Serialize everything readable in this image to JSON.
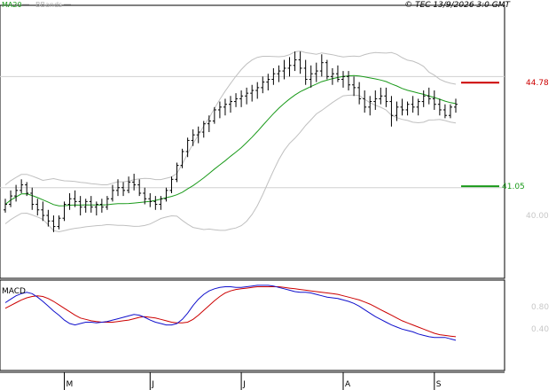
{
  "legend": {
    "ma_label": "MA20",
    "bb_label": "BBands",
    "ma_color": "#1a9a1a",
    "bb_color": "#c0c0c0"
  },
  "copyright": "© TEC 13/9/2026 3:0 GMT",
  "levels": {
    "resistance": {
      "value": 44.78,
      "label": "44.78",
      "color": "#cc0000"
    },
    "support": {
      "value": 41.05,
      "label": "41.05",
      "color": "#1a9a1a"
    },
    "axis_label": "40.00"
  },
  "macd_panel": {
    "title": "MACD",
    "tick_labels": [
      "0.80",
      "0.40"
    ],
    "macd_color": "#1010cc",
    "signal_color": "#cc0000"
  },
  "x_axis": {
    "months": [
      "M",
      "J",
      "J",
      "A",
      "S"
    ]
  },
  "chart_data": {
    "type": "line",
    "price": {
      "ylim": [
        37.8,
        47.5
      ],
      "gridlines": [
        45.0,
        41.0
      ],
      "sessions": 85,
      "series": [
        {
          "name": "Price",
          "ohlc": [
            [
              40.2,
              40.6,
              40.1,
              40.4
            ],
            [
              40.4,
              40.9,
              40.3,
              40.7
            ],
            [
              40.7,
              41.1,
              40.5,
              40.9
            ],
            [
              40.9,
              41.3,
              40.8,
              41.1
            ],
            [
              41.1,
              41.2,
              40.7,
              40.8
            ],
            [
              40.8,
              41.0,
              40.2,
              40.4
            ],
            [
              40.4,
              40.6,
              40.0,
              40.2
            ],
            [
              40.2,
              40.5,
              39.8,
              40.0
            ],
            [
              40.0,
              40.2,
              39.6,
              39.8
            ],
            [
              39.8,
              40.0,
              39.4,
              39.6
            ],
            [
              39.6,
              40.0,
              39.5,
              39.9
            ],
            [
              39.9,
              40.5,
              39.8,
              40.4
            ],
            [
              40.4,
              40.8,
              40.2,
              40.6
            ],
            [
              40.6,
              40.9,
              40.3,
              40.5
            ],
            [
              40.5,
              40.7,
              40.0,
              40.3
            ],
            [
              40.3,
              40.6,
              40.1,
              40.5
            ],
            [
              40.5,
              40.7,
              40.1,
              40.3
            ],
            [
              40.3,
              40.5,
              40.0,
              40.4
            ],
            [
              40.4,
              40.6,
              40.1,
              40.3
            ],
            [
              40.3,
              40.7,
              40.2,
              40.6
            ],
            [
              40.6,
              41.1,
              40.5,
              40.9
            ],
            [
              40.9,
              41.3,
              40.7,
              41.0
            ],
            [
              41.0,
              41.2,
              40.7,
              40.9
            ],
            [
              40.9,
              41.4,
              40.8,
              41.2
            ],
            [
              41.2,
              41.5,
              40.9,
              41.1
            ],
            [
              41.1,
              41.3,
              40.7,
              40.8
            ],
            [
              40.8,
              41.0,
              40.4,
              40.6
            ],
            [
              40.6,
              40.8,
              40.3,
              40.5
            ],
            [
              40.5,
              40.7,
              40.2,
              40.4
            ],
            [
              40.4,
              40.7,
              40.2,
              40.6
            ],
            [
              40.6,
              41.0,
              40.5,
              40.9
            ],
            [
              40.9,
              41.4,
              40.8,
              41.3
            ],
            [
              41.3,
              41.9,
              41.2,
              41.8
            ],
            [
              41.8,
              42.4,
              41.7,
              42.3
            ],
            [
              42.3,
              42.8,
              42.1,
              42.7
            ],
            [
              42.7,
              43.1,
              42.5,
              42.9
            ],
            [
              42.9,
              43.2,
              42.6,
              43.0
            ],
            [
              43.0,
              43.4,
              42.8,
              43.3
            ],
            [
              43.3,
              43.6,
              43.0,
              43.4
            ],
            [
              43.4,
              43.9,
              43.3,
              43.8
            ],
            [
              43.8,
              44.1,
              43.5,
              43.9
            ],
            [
              43.9,
              44.2,
              43.6,
              44.0
            ],
            [
              44.0,
              44.3,
              43.7,
              44.1
            ],
            [
              44.1,
              44.4,
              43.9,
              44.2
            ],
            [
              44.2,
              44.5,
              43.9,
              44.3
            ],
            [
              44.3,
              44.6,
              44.0,
              44.4
            ],
            [
              44.4,
              44.7,
              44.1,
              44.5
            ],
            [
              44.5,
              44.8,
              44.2,
              44.6
            ],
            [
              44.6,
              45.0,
              44.4,
              44.8
            ],
            [
              44.8,
              45.1,
              44.5,
              44.9
            ],
            [
              44.9,
              45.3,
              44.7,
              45.1
            ],
            [
              45.1,
              45.4,
              44.8,
              45.2
            ],
            [
              45.2,
              45.6,
              44.9,
              45.3
            ],
            [
              45.3,
              45.7,
              45.0,
              45.4
            ],
            [
              45.4,
              45.9,
              45.2,
              45.6
            ],
            [
              45.6,
              45.9,
              45.1,
              45.3
            ],
            [
              45.3,
              45.6,
              44.7,
              44.9
            ],
            [
              44.9,
              45.4,
              44.6,
              45.1
            ],
            [
              45.1,
              45.5,
              44.8,
              45.2
            ],
            [
              45.2,
              45.8,
              45.0,
              45.5
            ],
            [
              45.5,
              45.6,
              44.9,
              45.0
            ],
            [
              45.0,
              45.3,
              44.7,
              45.1
            ],
            [
              45.1,
              45.4,
              44.8,
              44.9
            ],
            [
              44.9,
              45.2,
              44.6,
              45.0
            ],
            [
              45.0,
              45.2,
              44.5,
              44.7
            ],
            [
              44.7,
              45.0,
              44.3,
              44.6
            ],
            [
              44.6,
              44.8,
              44.0,
              44.2
            ],
            [
              44.2,
              44.5,
              43.7,
              43.9
            ],
            [
              43.9,
              44.3,
              43.6,
              44.1
            ],
            [
              44.1,
              44.5,
              43.8,
              44.2
            ],
            [
              44.2,
              44.6,
              44.0,
              44.3
            ],
            [
              44.3,
              44.6,
              43.9,
              44.1
            ],
            [
              44.1,
              44.3,
              43.2,
              43.6
            ],
            [
              43.6,
              44.1,
              43.4,
              43.9
            ],
            [
              43.9,
              44.2,
              43.6,
              43.8
            ],
            [
              43.8,
              44.1,
              43.6,
              44.0
            ],
            [
              44.0,
              44.3,
              43.7,
              43.9
            ],
            [
              43.9,
              44.2,
              43.6,
              44.1
            ],
            [
              44.1,
              44.5,
              43.9,
              44.3
            ],
            [
              44.3,
              44.6,
              44.0,
              44.2
            ],
            [
              44.2,
              44.5,
              43.8,
              44.0
            ],
            [
              44.0,
              44.2,
              43.6,
              43.8
            ],
            [
              43.8,
              44.0,
              43.5,
              43.6
            ],
            [
              43.6,
              44.0,
              43.5,
              43.9
            ],
            [
              43.9,
              44.2,
              43.7,
              44.0
            ]
          ]
        }
      ]
    },
    "macd": {
      "ylim": [
        -0.05,
        1.2
      ],
      "series": [
        {
          "name": "MACD",
          "values": [
            0.9,
            0.95,
            1.0,
            1.03,
            1.05,
            1.03,
            0.98,
            0.92,
            0.85,
            0.78,
            0.72,
            0.65,
            0.6,
            0.58,
            0.6,
            0.62,
            0.62,
            0.61,
            0.62,
            0.63,
            0.65,
            0.67,
            0.69,
            0.71,
            0.73,
            0.72,
            0.69,
            0.65,
            0.62,
            0.6,
            0.58,
            0.58,
            0.6,
            0.66,
            0.75,
            0.86,
            0.95,
            1.02,
            1.07,
            1.1,
            1.12,
            1.13,
            1.13,
            1.12,
            1.12,
            1.13,
            1.14,
            1.15,
            1.15,
            1.15,
            1.14,
            1.12,
            1.1,
            1.08,
            1.06,
            1.05,
            1.05,
            1.04,
            1.02,
            1.0,
            0.98,
            0.97,
            0.96,
            0.94,
            0.92,
            0.89,
            0.85,
            0.8,
            0.75,
            0.7,
            0.66,
            0.62,
            0.58,
            0.55,
            0.52,
            0.5,
            0.48,
            0.45,
            0.43,
            0.41,
            0.4,
            0.4,
            0.4,
            0.38,
            0.36
          ]
        },
        {
          "name": "Signal",
          "values": [
            0.82,
            0.86,
            0.9,
            0.94,
            0.97,
            0.99,
            1.0,
            0.99,
            0.96,
            0.92,
            0.87,
            0.82,
            0.77,
            0.72,
            0.68,
            0.66,
            0.64,
            0.63,
            0.62,
            0.62,
            0.62,
            0.63,
            0.64,
            0.65,
            0.67,
            0.69,
            0.7,
            0.69,
            0.68,
            0.66,
            0.64,
            0.62,
            0.61,
            0.61,
            0.62,
            0.66,
            0.72,
            0.79,
            0.86,
            0.93,
            0.99,
            1.04,
            1.07,
            1.09,
            1.1,
            1.11,
            1.12,
            1.13,
            1.13,
            1.13,
            1.13,
            1.13,
            1.12,
            1.11,
            1.1,
            1.09,
            1.08,
            1.07,
            1.06,
            1.05,
            1.04,
            1.03,
            1.02,
            1.0,
            0.98,
            0.96,
            0.94,
            0.91,
            0.88,
            0.84,
            0.8,
            0.76,
            0.72,
            0.68,
            0.64,
            0.61,
            0.58,
            0.55,
            0.52,
            0.49,
            0.46,
            0.44,
            0.43,
            0.42,
            0.41
          ]
        }
      ]
    },
    "x_labels": [
      {
        "label": "M",
        "session": 11
      },
      {
        "label": "J",
        "session": 27
      },
      {
        "label": "J",
        "session": 44
      },
      {
        "label": "A",
        "session": 63
      },
      {
        "label": "S",
        "session": 80
      }
    ]
  }
}
